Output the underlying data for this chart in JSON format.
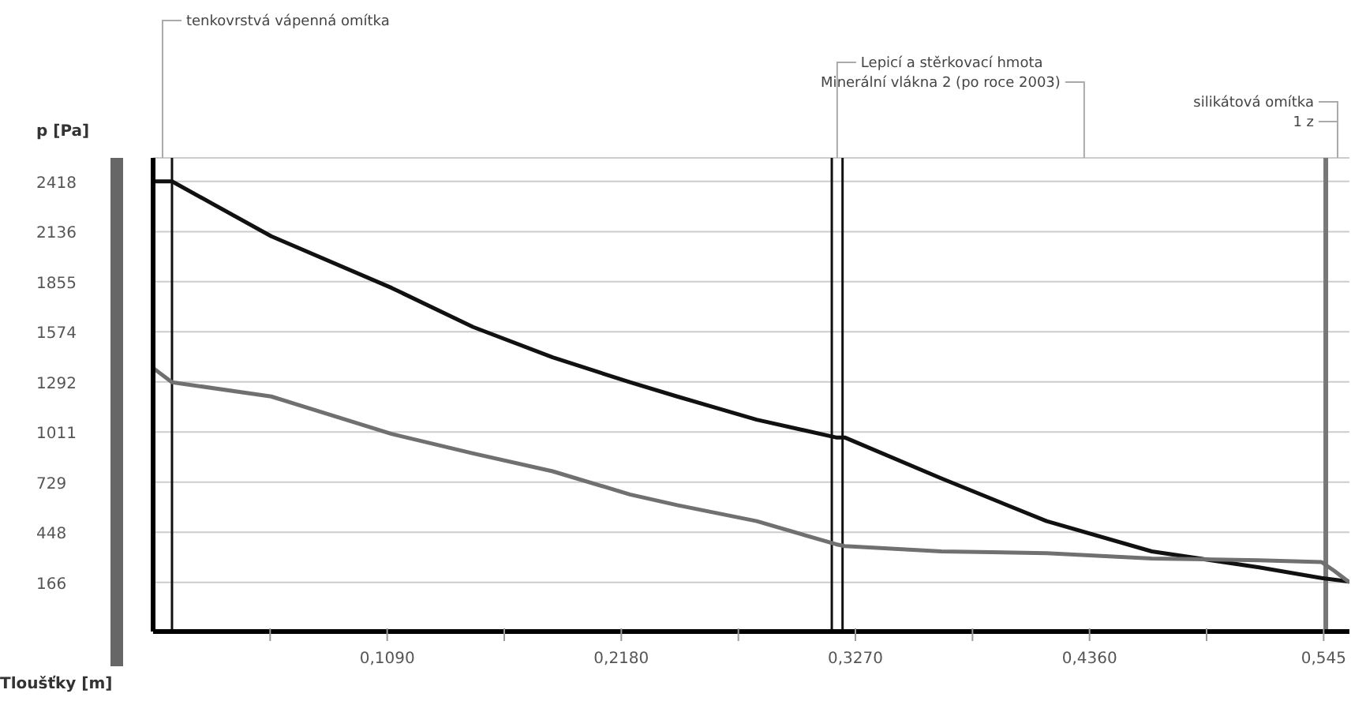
{
  "chart_data": {
    "type": "line",
    "xlabel": "Tloušťky [m]",
    "ylabel": "p [Pa]",
    "xlim": [
      0,
      0.557
    ],
    "ylim": [
      -110,
      2550
    ],
    "xticks": [
      {
        "value": 0.0545,
        "label": null
      },
      {
        "value": 0.109,
        "label": "0,1090"
      },
      {
        "value": 0.1635,
        "label": null
      },
      {
        "value": 0.218,
        "label": "0,2180"
      },
      {
        "value": 0.2725,
        "label": null
      },
      {
        "value": 0.327,
        "label": "0,3270"
      },
      {
        "value": 0.3815,
        "label": null
      },
      {
        "value": 0.436,
        "label": "0,4360"
      },
      {
        "value": 0.4905,
        "label": null
      },
      {
        "value": 0.545,
        "label": "0,545"
      }
    ],
    "yticks": [
      166,
      448,
      729,
      1011,
      1292,
      1574,
      1855,
      2136,
      2418
    ],
    "grid": "y",
    "marker": "none",
    "line_style": "solid",
    "series": [
      {
        "color": "#111111",
        "x": [
          0,
          0.0088,
          0.055,
          0.111,
          0.149,
          0.186,
          0.222,
          0.244,
          0.281,
          0.318,
          0.322,
          0.367,
          0.416,
          0.465,
          0.515,
          0.544,
          0.557
        ],
        "values": [
          2418,
          2418,
          2110,
          1820,
          1600,
          1430,
          1290,
          1210,
          1080,
          980,
          980,
          750,
          510,
          340,
          250,
          190,
          170
        ]
      },
      {
        "color": "#707070",
        "x": [
          0,
          0.0088,
          0.055,
          0.111,
          0.149,
          0.186,
          0.222,
          0.244,
          0.281,
          0.318,
          0.322,
          0.367,
          0.416,
          0.465,
          0.515,
          0.544,
          0.55,
          0.557
        ],
        "values": [
          1370,
          1290,
          1210,
          1000,
          890,
          790,
          660,
          600,
          510,
          380,
          370,
          340,
          330,
          300,
          290,
          280,
          230,
          166
        ]
      }
    ],
    "ref_lines": [
      {
        "axis": "x",
        "value": 0.0088,
        "color": "#111111"
      },
      {
        "axis": "x",
        "value": 0.316,
        "color": "#111111"
      },
      {
        "axis": "x",
        "value": 0.321,
        "color": "#111111"
      },
      {
        "axis": "x",
        "value": 0.546,
        "color": "#777777"
      }
    ],
    "annotations": [
      "tenkovrstvá vápenná omítka",
      "Lepicí a stěrkovací hmota",
      "Minerální vlákna 2 (po roce 2003)",
      "silikátová omítka",
      "1 z"
    ]
  }
}
